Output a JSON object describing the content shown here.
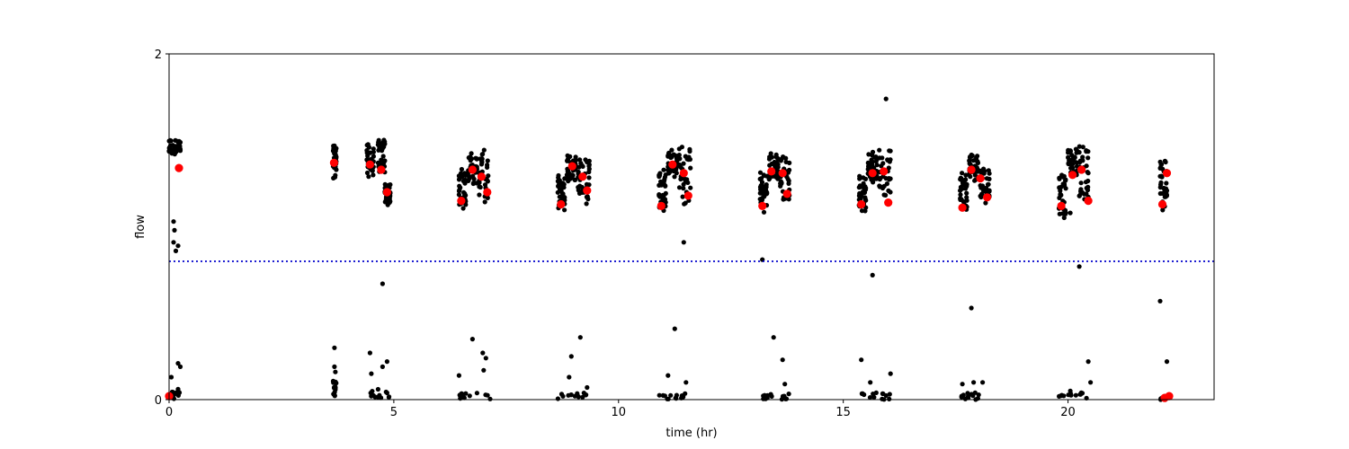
{
  "chart_data": {
    "type": "scatter",
    "xlabel": "time (hr)",
    "ylabel": "flow",
    "xlim": [
      0,
      23.25
    ],
    "ylim": [
      0,
      2
    ],
    "xticks": [
      0,
      5,
      10,
      15,
      20
    ],
    "yticks": [
      0,
      2
    ],
    "grid": false,
    "legend": "none",
    "threshold": {
      "y": 0.8,
      "color": "#0000cc"
    },
    "colors": {
      "points": "#000000",
      "highlights": "#ff0000"
    },
    "clusters": [
      {
        "x": [
          0.0,
          0.25
        ],
        "ymin": 1.4,
        "ymax": 1.51
      },
      {
        "x": [
          3.65,
          3.72
        ],
        "ymin": 1.22,
        "ymax": 1.48
      },
      {
        "x": [
          4.4,
          4.55
        ],
        "ymin": 1.23,
        "ymax": 1.48
      },
      {
        "x": [
          4.65,
          4.8
        ],
        "ymin": 1.25,
        "ymax": 1.51
      },
      {
        "x": [
          4.8,
          4.92
        ],
        "ymin": 1.1,
        "ymax": 1.25
      },
      {
        "x": [
          6.45,
          6.6
        ],
        "ymin": 1.05,
        "ymax": 1.35
      },
      {
        "x": [
          6.65,
          6.85
        ],
        "ymin": 1.2,
        "ymax": 1.43
      },
      {
        "x": [
          6.9,
          7.1
        ],
        "ymin": 1.08,
        "ymax": 1.45
      },
      {
        "x": [
          8.65,
          8.8
        ],
        "ymin": 1.04,
        "ymax": 1.3
      },
      {
        "x": [
          8.85,
          9.05
        ],
        "ymin": 1.2,
        "ymax": 1.43
      },
      {
        "x": [
          9.1,
          9.35
        ],
        "ymin": 1.06,
        "ymax": 1.43
      },
      {
        "x": [
          10.9,
          11.05
        ],
        "ymin": 1.03,
        "ymax": 1.36
      },
      {
        "x": [
          11.1,
          11.3
        ],
        "ymin": 1.25,
        "ymax": 1.45
      },
      {
        "x": [
          11.35,
          11.6
        ],
        "ymin": 1.05,
        "ymax": 1.48
      },
      {
        "x": [
          13.15,
          13.3
        ],
        "ymin": 1.04,
        "ymax": 1.33
      },
      {
        "x": [
          13.35,
          13.55
        ],
        "ymin": 1.2,
        "ymax": 1.43
      },
      {
        "x": [
          13.6,
          13.8
        ],
        "ymin": 1.08,
        "ymax": 1.43
      },
      {
        "x": [
          15.35,
          15.5
        ],
        "ymin": 1.04,
        "ymax": 1.3
      },
      {
        "x": [
          15.55,
          15.75
        ],
        "ymin": 1.22,
        "ymax": 1.44
      },
      {
        "x": [
          15.8,
          16.05
        ],
        "ymin": 1.1,
        "ymax": 1.46
      },
      {
        "x": [
          17.6,
          17.75
        ],
        "ymin": 1.04,
        "ymax": 1.33
      },
      {
        "x": [
          17.8,
          18.0
        ],
        "ymin": 1.23,
        "ymax": 1.43
      },
      {
        "x": [
          18.05,
          18.25
        ],
        "ymin": 1.08,
        "ymax": 1.36
      },
      {
        "x": [
          19.8,
          19.95
        ],
        "ymin": 1.0,
        "ymax": 1.3
      },
      {
        "x": [
          20.0,
          20.2
        ],
        "ymin": 1.25,
        "ymax": 1.46
      },
      {
        "x": [
          20.25,
          20.45
        ],
        "ymin": 1.06,
        "ymax": 1.48
      },
      {
        "x": [
          22.05,
          22.2
        ],
        "ymin": 1.0,
        "ymax": 1.4
      }
    ],
    "low_clusters": [
      {
        "x": [
          0.0,
          0.25
        ],
        "ymin": 0.0,
        "ymax": 0.05
      },
      {
        "x": [
          3.65,
          3.72
        ],
        "ymin": 0.02,
        "ymax": 0.12
      },
      {
        "x": [
          4.45,
          4.9
        ],
        "ymin": 0.0,
        "ymax": 0.06
      },
      {
        "x": [
          6.45,
          7.15
        ],
        "ymin": 0.0,
        "ymax": 0.04
      },
      {
        "x": [
          8.65,
          9.35
        ],
        "ymin": 0.0,
        "ymax": 0.04
      },
      {
        "x": [
          10.9,
          11.6
        ],
        "ymin": 0.0,
        "ymax": 0.04
      },
      {
        "x": [
          13.15,
          13.8
        ],
        "ymin": 0.0,
        "ymax": 0.04
      },
      {
        "x": [
          15.35,
          16.05
        ],
        "ymin": 0.0,
        "ymax": 0.04
      },
      {
        "x": [
          17.6,
          18.25
        ],
        "ymin": 0.0,
        "ymax": 0.04
      },
      {
        "x": [
          19.8,
          20.45
        ],
        "ymin": 0.0,
        "ymax": 0.04
      },
      {
        "x": [
          22.05,
          22.25
        ],
        "ymin": 0.0,
        "ymax": 0.02
      }
    ],
    "outliers": [
      [
        0.1,
        1.03
      ],
      [
        0.12,
        0.98
      ],
      [
        0.1,
        0.91
      ],
      [
        0.15,
        0.86
      ],
      [
        0.2,
        0.89
      ],
      [
        0.05,
        0.13
      ],
      [
        0.2,
        0.21
      ],
      [
        0.25,
        0.19
      ],
      [
        0.2,
        0.06
      ],
      [
        3.68,
        0.3
      ],
      [
        3.68,
        0.19
      ],
      [
        3.7,
        0.16
      ],
      [
        4.47,
        0.27
      ],
      [
        4.5,
        0.15
      ],
      [
        4.75,
        0.67
      ],
      [
        4.85,
        0.22
      ],
      [
        4.75,
        0.19
      ],
      [
        6.45,
        0.14
      ],
      [
        6.75,
        0.35
      ],
      [
        6.98,
        0.27
      ],
      [
        7.05,
        0.24
      ],
      [
        7.0,
        0.17
      ],
      [
        8.95,
        0.25
      ],
      [
        9.15,
        0.36
      ],
      [
        8.9,
        0.13
      ],
      [
        9.3,
        0.07
      ],
      [
        11.1,
        0.14
      ],
      [
        11.25,
        0.41
      ],
      [
        11.45,
        0.91
      ],
      [
        11.5,
        0.1
      ],
      [
        13.2,
        0.81
      ],
      [
        13.45,
        0.36
      ],
      [
        13.65,
        0.23
      ],
      [
        13.7,
        0.09
      ],
      [
        15.4,
        0.23
      ],
      [
        15.65,
        0.72
      ],
      [
        15.6,
        0.1
      ],
      [
        16.05,
        0.15
      ],
      [
        15.95,
        1.74
      ],
      [
        17.85,
        0.53
      ],
      [
        17.65,
        0.09
      ],
      [
        17.9,
        0.1
      ],
      [
        18.1,
        0.1
      ],
      [
        20.05,
        0.05
      ],
      [
        20.25,
        0.77
      ],
      [
        20.45,
        0.22
      ],
      [
        20.5,
        0.1
      ],
      [
        20.05,
        1.08
      ],
      [
        22.05,
        0.57
      ],
      [
        22.2,
        0.22
      ]
    ],
    "highlights": [
      [
        0.0,
        0.02
      ],
      [
        0.22,
        1.34
      ],
      [
        3.67,
        1.37
      ],
      [
        4.47,
        1.36
      ],
      [
        4.72,
        1.33
      ],
      [
        4.85,
        1.2
      ],
      [
        6.5,
        1.15
      ],
      [
        6.75,
        1.33
      ],
      [
        6.95,
        1.29
      ],
      [
        7.08,
        1.2
      ],
      [
        8.72,
        1.13
      ],
      [
        8.97,
        1.35
      ],
      [
        9.2,
        1.29
      ],
      [
        9.3,
        1.21
      ],
      [
        10.95,
        1.12
      ],
      [
        11.2,
        1.36
      ],
      [
        11.45,
        1.31
      ],
      [
        11.55,
        1.18
      ],
      [
        13.2,
        1.12
      ],
      [
        13.4,
        1.32
      ],
      [
        13.65,
        1.31
      ],
      [
        13.75,
        1.19
      ],
      [
        15.4,
        1.13
      ],
      [
        15.65,
        1.31
      ],
      [
        15.9,
        1.32
      ],
      [
        16.0,
        1.14
      ],
      [
        17.65,
        1.11
      ],
      [
        17.85,
        1.33
      ],
      [
        18.05,
        1.28
      ],
      [
        18.2,
        1.17
      ],
      [
        19.85,
        1.12
      ],
      [
        20.1,
        1.3
      ],
      [
        20.3,
        1.33
      ],
      [
        20.45,
        1.15
      ],
      [
        22.1,
        1.13
      ],
      [
        22.2,
        1.31
      ],
      [
        22.15,
        0.01
      ],
      [
        22.25,
        0.02
      ]
    ]
  }
}
